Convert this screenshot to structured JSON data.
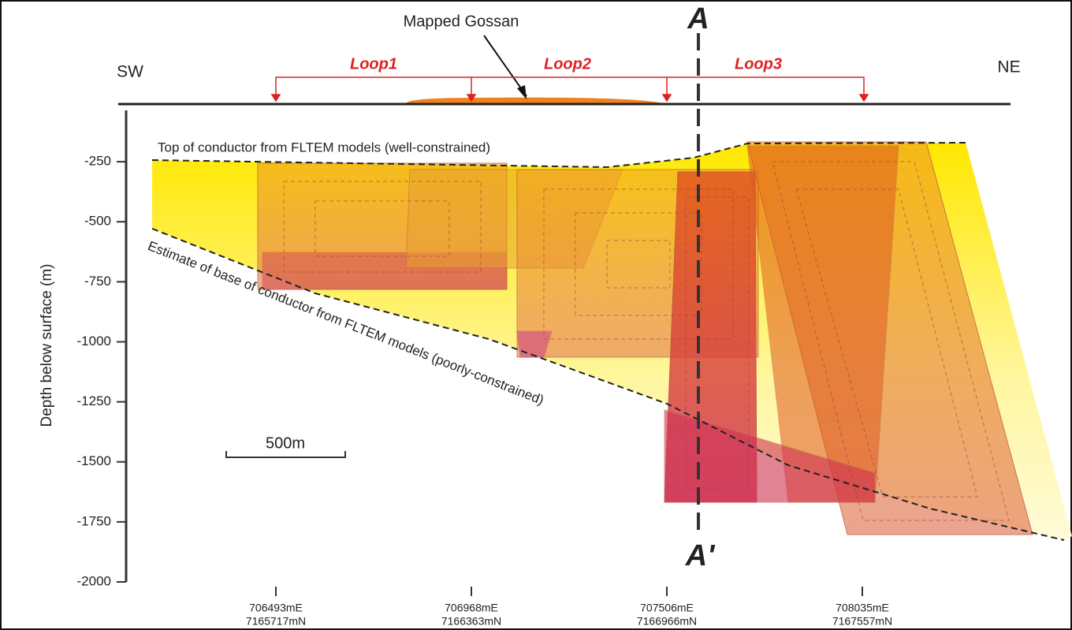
{
  "chart_data": {
    "type": "section",
    "annotations": {
      "gossan": "Mapped Gossan",
      "a": "A",
      "a_prime": "A'",
      "sw": "SW",
      "ne": "NE",
      "loops": [
        "Loop1",
        "Loop2",
        "Loop3"
      ],
      "top": "Top of conductor from FLTEM models (well-constrained)",
      "base": "Estimate of base of conductor from FLTEM models (poorly-constrained)",
      "scale": "500m"
    },
    "ylabel": "Depth below surface (m)",
    "ylim": [
      -2000,
      0
    ],
    "yticks": [
      -250,
      -500,
      -750,
      -1000,
      -1250,
      -1500,
      -1750,
      -2000
    ],
    "stations": [
      [
        "706493mE",
        "7165717mN"
      ],
      [
        "706968mE",
        "7166363mN"
      ],
      [
        "707506mE",
        "7166966mN"
      ],
      [
        "708035mE",
        "7167557mN"
      ]
    ]
  }
}
